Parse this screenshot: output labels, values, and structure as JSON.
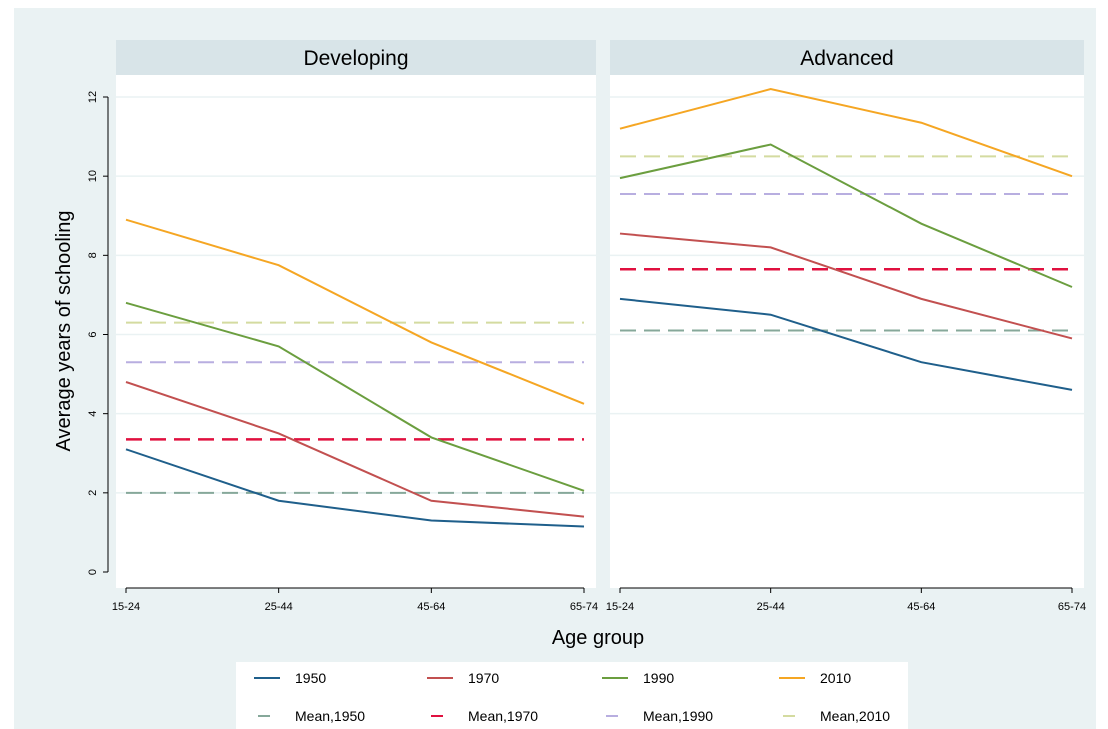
{
  "chart_data": {
    "type": "line",
    "ylabel": "Average years of schooling",
    "xlabel": "Age group",
    "categories": [
      "15-24",
      "25-44",
      "45-64",
      "65-74"
    ],
    "y_ticks": [
      "0",
      "2",
      "4",
      "6",
      "8",
      "10",
      "12"
    ],
    "ylim": [
      0,
      12.5
    ],
    "grid": true,
    "legend_position": "bottom",
    "panels": [
      {
        "title": "Developing",
        "series": [
          {
            "name": "1950",
            "values": [
              3.1,
              1.8,
              1.3,
              1.15
            ]
          },
          {
            "name": "1970",
            "values": [
              4.8,
              3.5,
              1.8,
              1.4
            ]
          },
          {
            "name": "1990",
            "values": [
              6.8,
              5.7,
              3.4,
              2.05
            ]
          },
          {
            "name": "2010",
            "values": [
              8.9,
              7.75,
              5.8,
              4.25
            ]
          }
        ],
        "means": [
          {
            "name": "Mean,1950",
            "value": 2.0
          },
          {
            "name": "Mean,1970",
            "value": 3.35
          },
          {
            "name": "Mean,1990",
            "value": 5.3
          },
          {
            "name": "Mean,2010",
            "value": 6.3
          }
        ]
      },
      {
        "title": "Advanced",
        "series": [
          {
            "name": "1950",
            "values": [
              6.9,
              6.5,
              5.3,
              4.6
            ]
          },
          {
            "name": "1970",
            "values": [
              8.55,
              8.2,
              6.9,
              5.9
            ]
          },
          {
            "name": "1990",
            "values": [
              9.95,
              10.8,
              8.8,
              7.2
            ]
          },
          {
            "name": "2010",
            "values": [
              11.2,
              12.2,
              11.35,
              10.0
            ]
          }
        ],
        "means": [
          {
            "name": "Mean,1950",
            "value": 6.1
          },
          {
            "name": "Mean,1970",
            "value": 7.65
          },
          {
            "name": "Mean,1990",
            "value": 9.55
          },
          {
            "name": "Mean,2010",
            "value": 10.5
          }
        ]
      }
    ],
    "colors": {
      "1950": "#1f5f8b",
      "1970": "#c25050",
      "1990": "#6b9e3f",
      "2010": "#f5a623",
      "Mean,1950": "#86a89a",
      "Mean,1970": "#e0103f",
      "Mean,1990": "#b8aee0",
      "Mean,2010": "#d4dba0"
    },
    "legend": [
      {
        "label": "1950",
        "style": "solid"
      },
      {
        "label": "1970",
        "style": "solid"
      },
      {
        "label": "1990",
        "style": "solid"
      },
      {
        "label": "2010",
        "style": "solid"
      },
      {
        "label": "Mean,1950",
        "style": "dashed"
      },
      {
        "label": "Mean,1970",
        "style": "dashed"
      },
      {
        "label": "Mean,1990",
        "style": "dashed"
      },
      {
        "label": "Mean,2010",
        "style": "dashed"
      }
    ]
  }
}
